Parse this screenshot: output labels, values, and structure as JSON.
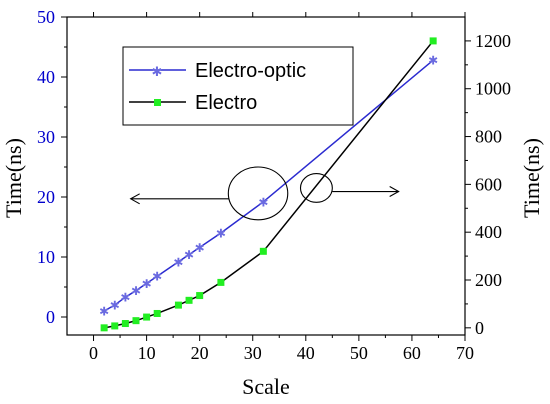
{
  "chart_data": {
    "type": "line",
    "xlabel": "Scale",
    "ylabel_left": "Time(ns)",
    "ylabel_right": "Time(ns)",
    "xlim": [
      -5,
      70
    ],
    "xticks": [
      "0",
      "10",
      "20",
      "30",
      "40",
      "50",
      "60",
      "70"
    ],
    "ylim_left": [
      -3,
      50
    ],
    "yticks_left": [
      "0",
      "10",
      "20",
      "30",
      "40",
      "50"
    ],
    "ylim_right": [
      -30,
      1300
    ],
    "yticks_right": [
      "0",
      "200",
      "400",
      "600",
      "800",
      "1000",
      "1200"
    ],
    "grid": false,
    "legend_position": "top-left",
    "colors": {
      "left_axis": "#0000CC",
      "electro_optic": "#2B2BD0",
      "electro_line": "#000000",
      "electro_marker": "#22EE22"
    },
    "series": [
      {
        "name": "Electro-optic",
        "axis": "left",
        "marker": "star",
        "x": [
          2,
          4,
          6,
          8,
          10,
          12,
          16,
          18,
          20,
          24,
          32,
          64
        ],
        "y": [
          1.0,
          2.0,
          3.3,
          4.4,
          5.6,
          6.8,
          9.2,
          10.4,
          11.6,
          14.0,
          19.2,
          42.8
        ]
      },
      {
        "name": "Electro",
        "axis": "right",
        "marker": "square",
        "x": [
          2,
          4,
          6,
          8,
          10,
          12,
          16,
          18,
          20,
          24,
          32,
          64
        ],
        "y": [
          0,
          8,
          18,
          30,
          45,
          60,
          95,
          115,
          135,
          190,
          320,
          1200
        ]
      }
    ],
    "annotations": [
      {
        "type": "ellipse",
        "label": "ellipse-left-series",
        "cx": 31,
        "cy": 20.6,
        "rx": 5.6,
        "ry": 4.4
      },
      {
        "type": "arrow",
        "label": "arrow-to-left-axis",
        "from": [
          25.5,
          19.7
        ],
        "to": [
          7,
          19.7
        ]
      },
      {
        "type": "ellipse",
        "label": "ellipse-right-series",
        "cx": 42,
        "cy_right": 585,
        "rx": 3.0,
        "ry_right": 60
      },
      {
        "type": "arrow",
        "label": "arrow-to-right-axis",
        "from_right": [
          45,
          570
        ],
        "to_right": [
          57.5,
          570
        ]
      }
    ]
  }
}
